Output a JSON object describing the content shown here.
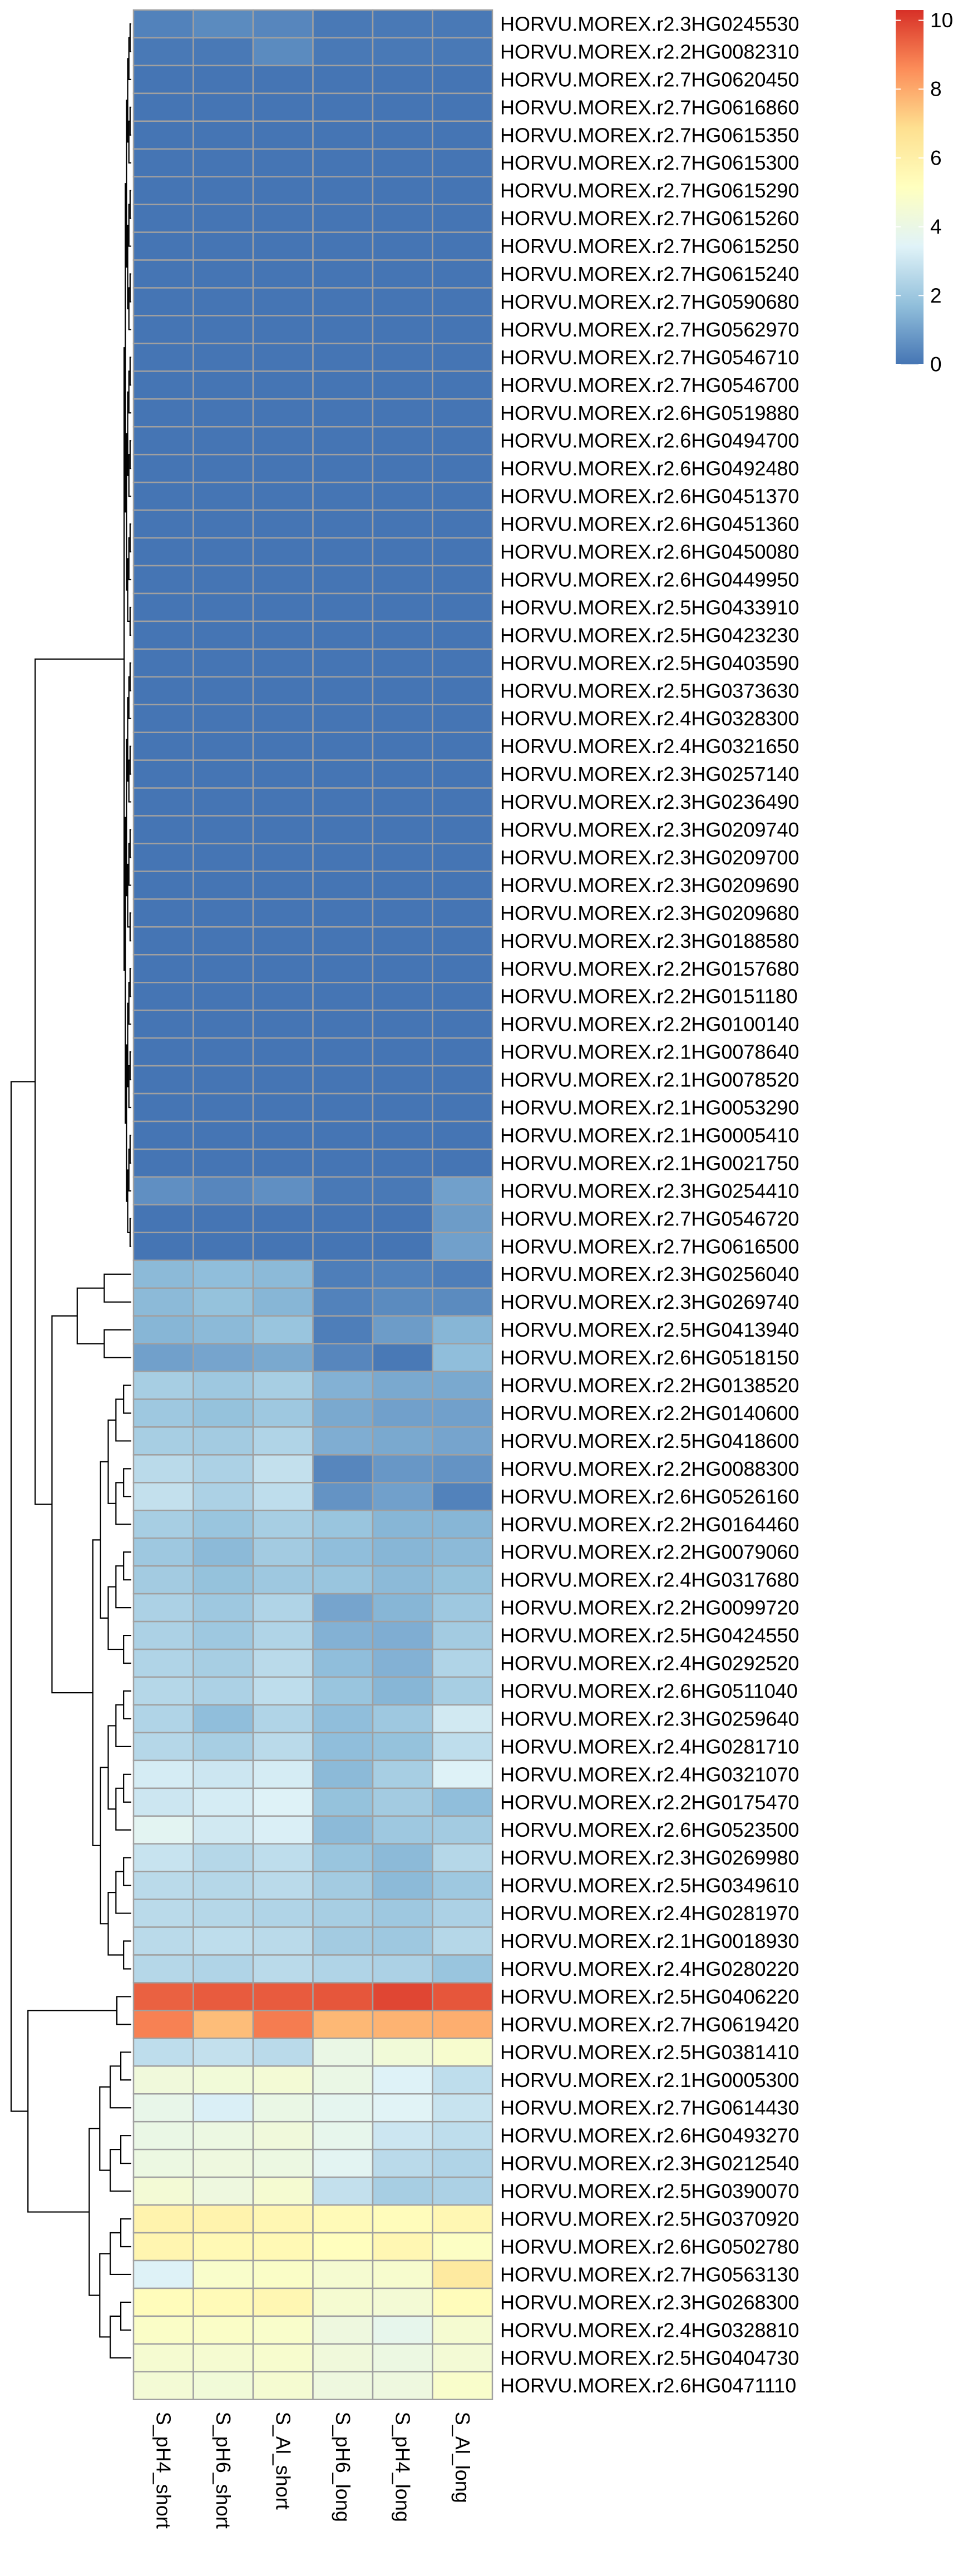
{
  "chart_data": {
    "type": "heatmap",
    "columns": [
      "S_pH4_short",
      "S_pH6_short",
      "S_Al_short",
      "S_pH6_long",
      "S_pH4_long",
      "S_Al_long"
    ],
    "rows": [
      "HORVU.MOREX.r2.3HG0245530",
      "HORVU.MOREX.r2.2HG0082310",
      "HORVU.MOREX.r2.7HG0620450",
      "HORVU.MOREX.r2.7HG0616860",
      "HORVU.MOREX.r2.7HG0615350",
      "HORVU.MOREX.r2.7HG0615300",
      "HORVU.MOREX.r2.7HG0615290",
      "HORVU.MOREX.r2.7HG0615260",
      "HORVU.MOREX.r2.7HG0615250",
      "HORVU.MOREX.r2.7HG0615240",
      "HORVU.MOREX.r2.7HG0590680",
      "HORVU.MOREX.r2.7HG0562970",
      "HORVU.MOREX.r2.7HG0546710",
      "HORVU.MOREX.r2.7HG0546700",
      "HORVU.MOREX.r2.6HG0519880",
      "HORVU.MOREX.r2.6HG0494700",
      "HORVU.MOREX.r2.6HG0492480",
      "HORVU.MOREX.r2.6HG0451370",
      "HORVU.MOREX.r2.6HG0451360",
      "HORVU.MOREX.r2.6HG0450080",
      "HORVU.MOREX.r2.6HG0449950",
      "HORVU.MOREX.r2.5HG0433910",
      "HORVU.MOREX.r2.5HG0423230",
      "HORVU.MOREX.r2.5HG0403590",
      "HORVU.MOREX.r2.5HG0373630",
      "HORVU.MOREX.r2.4HG0328300",
      "HORVU.MOREX.r2.4HG0321650",
      "HORVU.MOREX.r2.3HG0257140",
      "HORVU.MOREX.r2.3HG0236490",
      "HORVU.MOREX.r2.3HG0209740",
      "HORVU.MOREX.r2.3HG0209700",
      "HORVU.MOREX.r2.3HG0209690",
      "HORVU.MOREX.r2.3HG0209680",
      "HORVU.MOREX.r2.3HG0188580",
      "HORVU.MOREX.r2.2HG0157680",
      "HORVU.MOREX.r2.2HG0151180",
      "HORVU.MOREX.r2.2HG0100140",
      "HORVU.MOREX.r2.1HG0078640",
      "HORVU.MOREX.r2.1HG0078520",
      "HORVU.MOREX.r2.1HG0053290",
      "HORVU.MOREX.r2.1HG0005410",
      "HORVU.MOREX.r2.1HG0021750",
      "HORVU.MOREX.r2.3HG0254410",
      "HORVU.MOREX.r2.7HG0546720",
      "HORVU.MOREX.r2.7HG0616500",
      "HORVU.MOREX.r2.3HG0256040",
      "HORVU.MOREX.r2.3HG0269740",
      "HORVU.MOREX.r2.5HG0413940",
      "HORVU.MOREX.r2.6HG0518150",
      "HORVU.MOREX.r2.2HG0138520",
      "HORVU.MOREX.r2.2HG0140600",
      "HORVU.MOREX.r2.5HG0418600",
      "HORVU.MOREX.r2.2HG0088300",
      "HORVU.MOREX.r2.6HG0526160",
      "HORVU.MOREX.r2.2HG0164460",
      "HORVU.MOREX.r2.2HG0079060",
      "HORVU.MOREX.r2.4HG0317680",
      "HORVU.MOREX.r2.2HG0099720",
      "HORVU.MOREX.r2.5HG0424550",
      "HORVU.MOREX.r2.4HG0292520",
      "HORVU.MOREX.r2.6HG0511040",
      "HORVU.MOREX.r2.3HG0259640",
      "HORVU.MOREX.r2.4HG0281710",
      "HORVU.MOREX.r2.4HG0321070",
      "HORVU.MOREX.r2.2HG0175470",
      "HORVU.MOREX.r2.6HG0523500",
      "HORVU.MOREX.r2.3HG0269980",
      "HORVU.MOREX.r2.5HG0349610",
      "HORVU.MOREX.r2.4HG0281970",
      "HORVU.MOREX.r2.1HG0018930",
      "HORVU.MOREX.r2.4HG0280220",
      "HORVU.MOREX.r2.5HG0406220",
      "HORVU.MOREX.r2.7HG0619420",
      "HORVU.MOREX.r2.5HG0381410",
      "HORVU.MOREX.r2.1HG0005300",
      "HORVU.MOREX.r2.7HG0614430",
      "HORVU.MOREX.r2.6HG0493270",
      "HORVU.MOREX.r2.3HG0212540",
      "HORVU.MOREX.r2.5HG0390070",
      "HORVU.MOREX.r2.5HG0370920",
      "HORVU.MOREX.r2.6HG0502780",
      "HORVU.MOREX.r2.7HG0563130",
      "HORVU.MOREX.r2.3HG0268300",
      "HORVU.MOREX.r2.4HG0328810",
      "HORVU.MOREX.r2.5HG0404730",
      "HORVU.MOREX.r2.6HG0471110"
    ],
    "values": [
      [
        0.3,
        0.5,
        0.4,
        0.1,
        0.1,
        0.1
      ],
      [
        0.1,
        0.1,
        0.5,
        0.1,
        0.1,
        0.1
      ],
      [
        0,
        0,
        0,
        0,
        0,
        0
      ],
      [
        0,
        0,
        0,
        0,
        0,
        0
      ],
      [
        0,
        0,
        0,
        0,
        0,
        0
      ],
      [
        0,
        0,
        0,
        0,
        0,
        0
      ],
      [
        0,
        0,
        0,
        0,
        0,
        0
      ],
      [
        0,
        0,
        0,
        0,
        0,
        0
      ],
      [
        0,
        0,
        0,
        0,
        0,
        0
      ],
      [
        0,
        0,
        0,
        0,
        0,
        0
      ],
      [
        0,
        0,
        0,
        0,
        0,
        0
      ],
      [
        0,
        0,
        0,
        0,
        0,
        0
      ],
      [
        0,
        0,
        0,
        0,
        0,
        0
      ],
      [
        0,
        0,
        0,
        0,
        0,
        0
      ],
      [
        0,
        0,
        0,
        0,
        0,
        0
      ],
      [
        0,
        0,
        0,
        0,
        0,
        0
      ],
      [
        0,
        0,
        0,
        0,
        0,
        0
      ],
      [
        0,
        0,
        0,
        0,
        0,
        0
      ],
      [
        0,
        0,
        0,
        0,
        0,
        0
      ],
      [
        0,
        0,
        0,
        0,
        0,
        0
      ],
      [
        0,
        0,
        0,
        0,
        0,
        0
      ],
      [
        0,
        0,
        0,
        0,
        0,
        0
      ],
      [
        0,
        0,
        0,
        0,
        0,
        0
      ],
      [
        0,
        0,
        0,
        0,
        0,
        0
      ],
      [
        0,
        0,
        0,
        0,
        0,
        0
      ],
      [
        0,
        0,
        0,
        0,
        0,
        0
      ],
      [
        0,
        0,
        0,
        0,
        0,
        0
      ],
      [
        0,
        0,
        0,
        0,
        0,
        0
      ],
      [
        0,
        0,
        0,
        0,
        0,
        0
      ],
      [
        0,
        0,
        0,
        0,
        0,
        0
      ],
      [
        0,
        0,
        0,
        0,
        0,
        0
      ],
      [
        0,
        0,
        0,
        0,
        0,
        0
      ],
      [
        0,
        0,
        0,
        0,
        0,
        0
      ],
      [
        0,
        0,
        0,
        0,
        0,
        0
      ],
      [
        0,
        0,
        0,
        0,
        0,
        0
      ],
      [
        0,
        0,
        0,
        0,
        0,
        0
      ],
      [
        0,
        0,
        0,
        0,
        0,
        0
      ],
      [
        0,
        0,
        0,
        0,
        0,
        0
      ],
      [
        0,
        0,
        0,
        0,
        0,
        0
      ],
      [
        0,
        0,
        0,
        0,
        0,
        0
      ],
      [
        0,
        0,
        0,
        0,
        0,
        0
      ],
      [
        0,
        0,
        0,
        0,
        0,
        0
      ],
      [
        0.6,
        0.4,
        0.6,
        0.1,
        0.1,
        1.0
      ],
      [
        0,
        0,
        0,
        0,
        0,
        0.9
      ],
      [
        0,
        0,
        0,
        0,
        0,
        1.0
      ],
      [
        1.6,
        1.7,
        1.6,
        0.2,
        0.3,
        0.2
      ],
      [
        1.6,
        1.8,
        1.5,
        0.3,
        0.5,
        0.5
      ],
      [
        1.5,
        1.6,
        1.9,
        0.2,
        0.9,
        1.5
      ],
      [
        1.0,
        1.1,
        1.2,
        0.4,
        0.1,
        1.7
      ],
      [
        2.2,
        2.0,
        2.2,
        1.4,
        1.2,
        1.2
      ],
      [
        2.0,
        1.8,
        2.0,
        1.2,
        1.0,
        1.0
      ],
      [
        2.2,
        2.1,
        2.4,
        1.3,
        1.2,
        1.1
      ],
      [
        2.6,
        2.3,
        2.8,
        0.4,
        0.8,
        0.7
      ],
      [
        2.8,
        2.3,
        2.7,
        0.7,
        1.0,
        0.3
      ],
      [
        2.2,
        1.9,
        2.2,
        1.9,
        1.5,
        1.5
      ],
      [
        2.0,
        1.6,
        2.1,
        1.7,
        1.5,
        1.6
      ],
      [
        2.1,
        1.8,
        2.0,
        1.9,
        1.6,
        1.8
      ],
      [
        2.3,
        2.0,
        2.4,
        1.1,
        1.5,
        2.0
      ],
      [
        2.3,
        2.0,
        2.4,
        1.4,
        1.3,
        2.1
      ],
      [
        2.4,
        2.2,
        2.6,
        1.7,
        1.4,
        2.4
      ],
      [
        2.5,
        2.3,
        2.7,
        1.9,
        1.5,
        2.2
      ],
      [
        2.4,
        1.7,
        2.4,
        1.7,
        2.0,
        3.1
      ],
      [
        2.5,
        2.2,
        2.6,
        1.7,
        1.8,
        2.7
      ],
      [
        3.2,
        3.0,
        3.2,
        1.6,
        2.2,
        3.4
      ],
      [
        3.0,
        3.2,
        3.4,
        1.8,
        2.1,
        1.7
      ],
      [
        3.6,
        3.1,
        3.3,
        1.6,
        2.0,
        2.1
      ],
      [
        2.9,
        2.5,
        2.7,
        1.9,
        1.6,
        2.5
      ],
      [
        2.6,
        2.5,
        2.6,
        2.1,
        1.6,
        2.0
      ],
      [
        2.6,
        2.5,
        2.4,
        2.2,
        2.0,
        2.3
      ],
      [
        2.6,
        2.7,
        2.6,
        2.1,
        2.0,
        2.5
      ],
      [
        2.5,
        2.4,
        2.6,
        2.4,
        2.3,
        1.9
      ],
      [
        9.4,
        9.5,
        9.5,
        9.6,
        9.9,
        9.6
      ],
      [
        8.8,
        7.6,
        8.9,
        7.7,
        7.8,
        7.9
      ],
      [
        2.7,
        2.8,
        2.6,
        4.0,
        4.4,
        4.7
      ],
      [
        4.3,
        4.4,
        4.5,
        4.0,
        3.4,
        2.7
      ],
      [
        3.9,
        3.3,
        4.0,
        3.7,
        3.5,
        2.9
      ],
      [
        4.0,
        4.1,
        4.3,
        3.8,
        3.0,
        2.7
      ],
      [
        4.1,
        4.2,
        4.1,
        3.6,
        2.6,
        2.4
      ],
      [
        4.5,
        4.2,
        4.6,
        2.8,
        2.2,
        2.3
      ],
      [
        5.8,
        5.8,
        5.6,
        5.4,
        5.3,
        5.6
      ],
      [
        5.7,
        5.5,
        5.5,
        5.2,
        5.6,
        5.0
      ],
      [
        3.4,
        4.8,
        4.9,
        4.6,
        4.7,
        6.3
      ],
      [
        5.3,
        5.4,
        5.6,
        4.6,
        4.5,
        5.3
      ],
      [
        4.9,
        4.9,
        4.8,
        4.2,
        3.8,
        4.6
      ],
      [
        4.6,
        4.6,
        4.7,
        4.3,
        4.1,
        4.5
      ],
      [
        4.5,
        4.4,
        4.6,
        4.2,
        4.2,
        4.8
      ]
    ],
    "legend": {
      "ticks": [
        0,
        2,
        4,
        6,
        8,
        10
      ],
      "range": [
        0,
        10.3
      ]
    },
    "colors": [
      "#4575b4",
      "#91bfdb",
      "#e0f3f8",
      "#ffffbf",
      "#fee090",
      "#fc8d59",
      "#d73027"
    ],
    "cell_border": "#a0a0a0",
    "dendrogram": "rows"
  }
}
